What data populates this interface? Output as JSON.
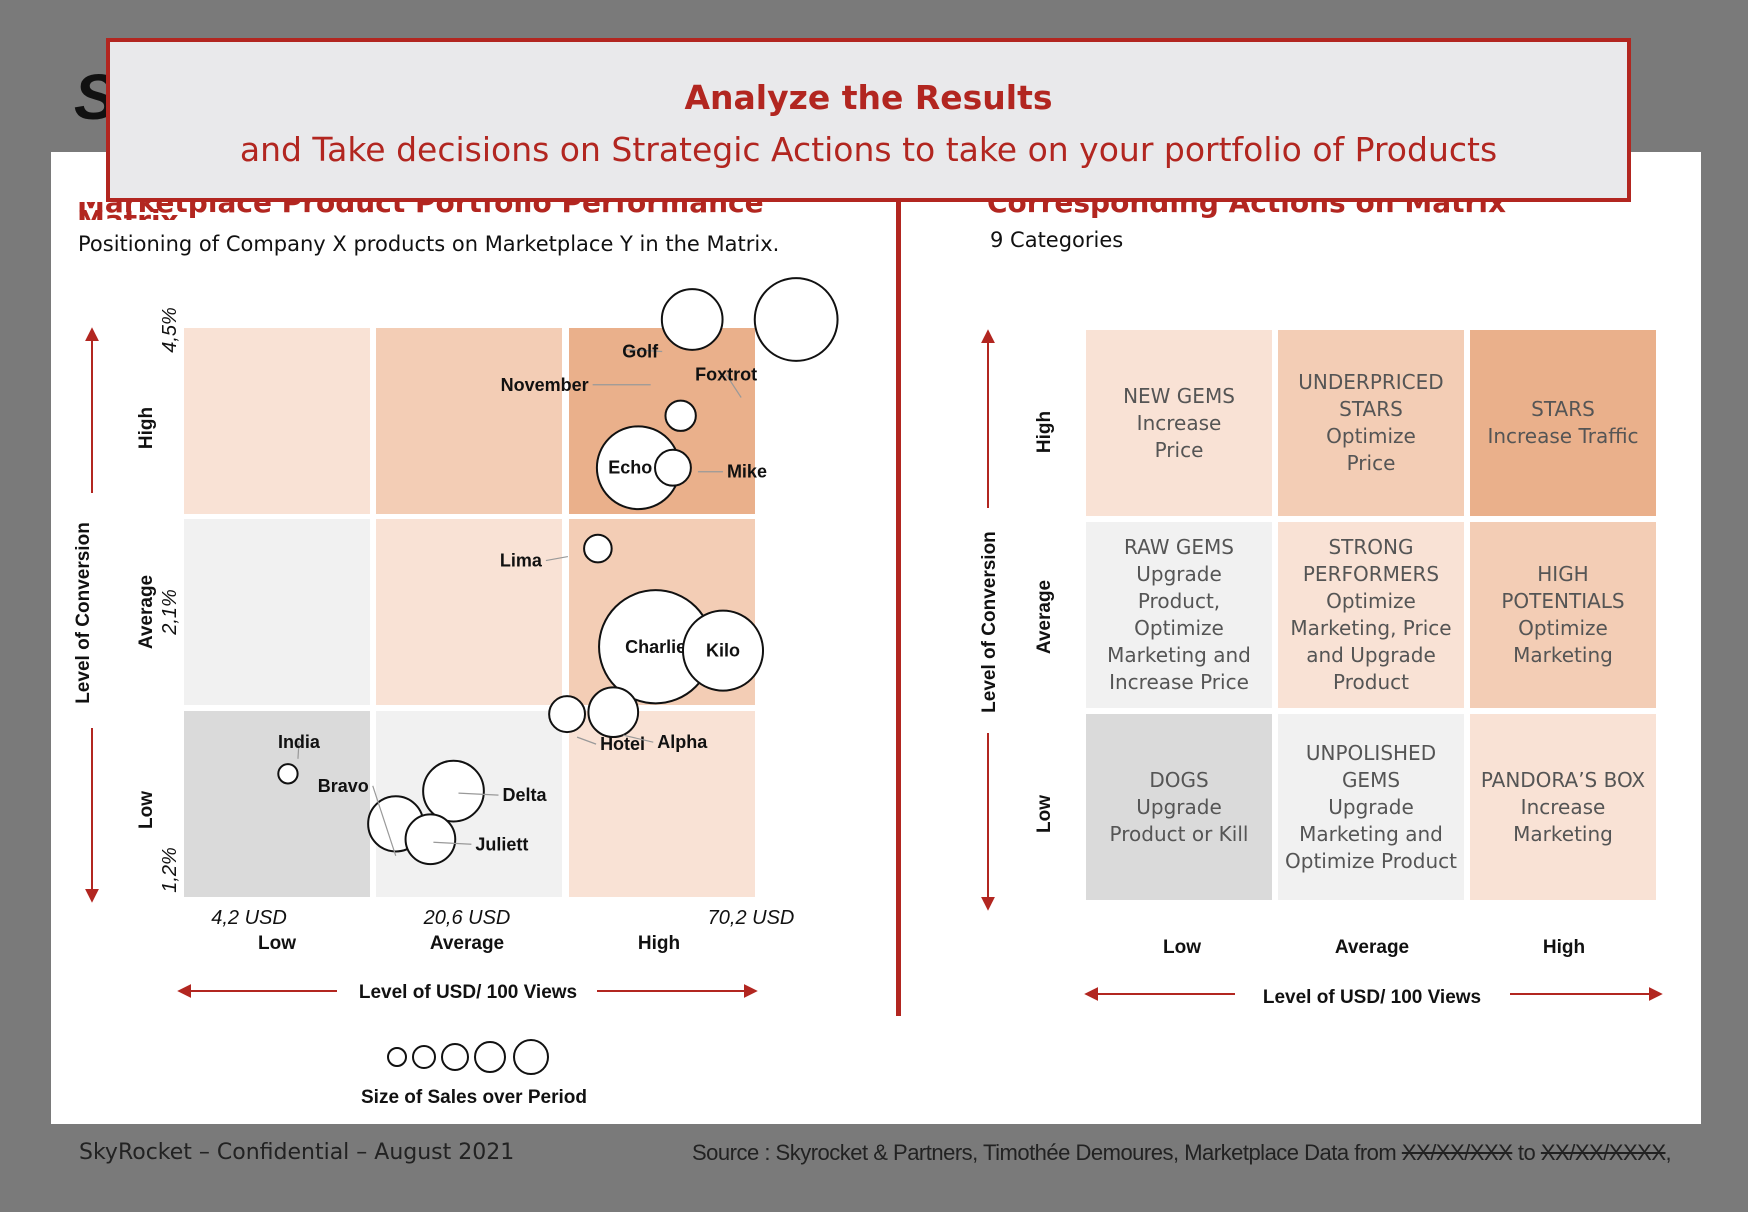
{
  "logo": "Sk",
  "banner": {
    "line1": "Analyze the Results",
    "line2": "and Take decisions on Strategic Actions to take on your portfolio of Products"
  },
  "left_panel": {
    "title": "Marketplace Product Portfolio Performance Matrix",
    "subtitle": "Positioning of Company X products on Marketplace Y in the Matrix.",
    "y_axis_label": "Level of Conversion",
    "x_axis_label": "Level of USD/ 100 Views",
    "y_levels": [
      "High",
      "Average",
      "Low"
    ],
    "y_values": [
      "4,5%",
      "2,1%",
      "1,2%"
    ],
    "x_levels": [
      "Low",
      "Average",
      "High"
    ],
    "x_values": [
      "4,2 USD",
      "20,6 USD",
      "70,2 USD"
    ],
    "size_legend_label": "Size of Sales over Period",
    "cell_colors": [
      [
        "#f9e2d5",
        "#f3cdb5",
        "#eab08b"
      ],
      [
        "#f1f1f1",
        "#f9e2d5",
        "#f3cdb5"
      ],
      [
        "#dadada",
        "#f1f1f1",
        "#f9e2d5"
      ]
    ]
  },
  "chart_data": {
    "type": "scatter",
    "title": "Marketplace Product Portfolio Performance Matrix",
    "xlabel": "Level of USD/ 100 Views",
    "ylabel": "Level of Conversion",
    "size_label": "Size of Sales over Period",
    "x_tick_labels": [
      "4,2 USD",
      "20,6 USD",
      "70,2 USD"
    ],
    "y_tick_labels": [
      "4,5%",
      "2,1%",
      "1,2%"
    ],
    "points": [
      {
        "name": "Golf",
        "x": 2.64,
        "y": 3.0,
        "size": 0.22
      },
      {
        "name": "Foxtrot",
        "x": 3.18,
        "y": 3.0,
        "size": 0.3
      },
      {
        "name": "November",
        "x": 2.58,
        "y": 2.5,
        "size": 0.11
      },
      {
        "name": "Echo",
        "x": 2.36,
        "y": 2.23,
        "size": 0.3
      },
      {
        "name": "Mike",
        "x": 2.54,
        "y": 2.23,
        "size": 0.13
      },
      {
        "name": "Lima",
        "x": 2.15,
        "y": 1.81,
        "size": 0.1
      },
      {
        "name": "Charlie",
        "x": 2.45,
        "y": 1.3,
        "size": 0.41
      },
      {
        "name": "Kilo",
        "x": 2.8,
        "y": 1.28,
        "size": 0.29
      },
      {
        "name": "Hotel",
        "x": 1.99,
        "y": 0.95,
        "size": 0.13
      },
      {
        "name": "Alpha",
        "x": 2.23,
        "y": 0.96,
        "size": 0.18
      },
      {
        "name": "India",
        "x": 0.54,
        "y": 0.64,
        "size": 0.07
      },
      {
        "name": "Bravo",
        "x": 1.1,
        "y": 0.38,
        "size": 0.2
      },
      {
        "name": "Delta",
        "x": 1.4,
        "y": 0.55,
        "size": 0.22
      },
      {
        "name": "Juliett",
        "x": 1.28,
        "y": 0.3,
        "size": 0.18
      }
    ]
  },
  "right_panel": {
    "title": "Corresponding Actions on Matrix",
    "subtitle": "9 Categories",
    "y_axis_label": "Level of Conversion",
    "x_axis_label": "Level of USD/ 100 Views",
    "y_levels": [
      "High",
      "Average",
      "Low"
    ],
    "x_levels": [
      "Low",
      "Average",
      "High"
    ],
    "cells": [
      {
        "text": "NEW GEMS\nIncrease\nPrice",
        "color": "#f9e2d5"
      },
      {
        "text": "UNDERPRICED\nSTARS\nOptimize\nPrice",
        "color": "#f3cdb5"
      },
      {
        "text": "STARS\nIncrease Traffic",
        "color": "#eab08b"
      },
      {
        "text": "RAW GEMS\nUpgrade\nProduct,\nOptimize\nMarketing and\nIncrease Price",
        "color": "#f1f1f1"
      },
      {
        "text": "STRONG\nPERFORMERS\nOptimize\nMarketing, Price\nand Upgrade\nProduct",
        "color": "#f9e2d5"
      },
      {
        "text": "HIGH\nPOTENTIALS\nOptimize\nMarketing",
        "color": "#f3cdb5"
      },
      {
        "text": "DOGS\nUpgrade\nProduct or Kill",
        "color": "#dadada"
      },
      {
        "text": "UNPOLISHED\nGEMS\nUpgrade\nMarketing and\nOptimize Product",
        "color": "#f1f1f1"
      },
      {
        "text": "PANDORA’S BOX\nIncrease\nMarketing",
        "color": "#f9e2d5"
      }
    ]
  },
  "footer": {
    "left": "SkyRocket – Confidential – August 2021",
    "source_prefix": "Source : Skyrocket & Partners, Timothée Demoures, Marketplace Data from ",
    "date_from": "XX/XX/XXX",
    "middle": " to ",
    "date_to": "XX/XX/XXXX",
    "suffix": ","
  },
  "colors": {
    "accent": "#b22620",
    "background": "#7a7a7a"
  }
}
